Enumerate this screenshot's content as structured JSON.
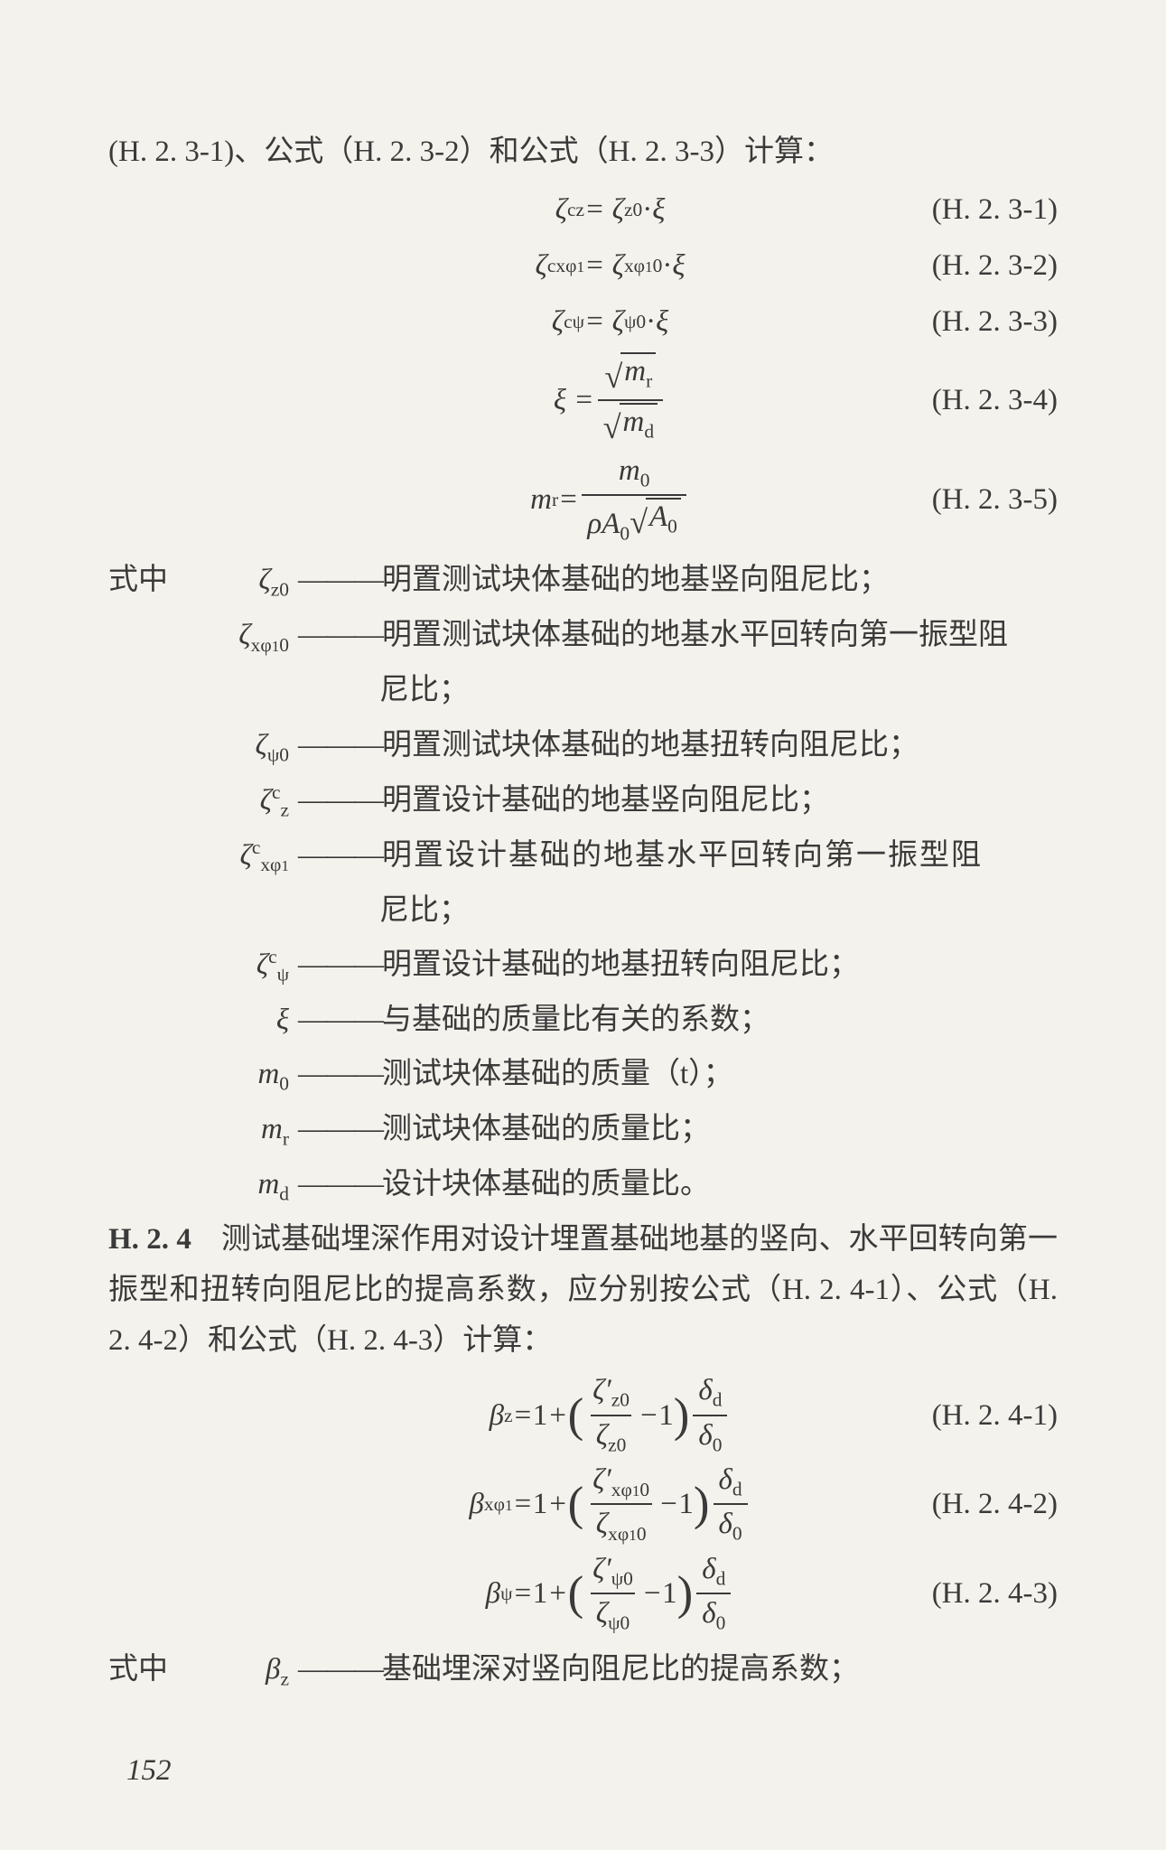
{
  "colors": {
    "text": "#3a3a3a",
    "bg": "#f4f2ec",
    "rule": "#3a3a3a"
  },
  "fonts": {
    "body_family": "SimSun/Songti",
    "body_size_pt": 16,
    "math_family": "Times New Roman"
  },
  "intro_line": "(H. 2. 3-1)、公式（H. 2. 3-2）和公式（H. 2. 3-3）计算：",
  "eqs23": [
    {
      "label": "(H. 2. 3-1)"
    },
    {
      "label": "(H. 2. 3-2)"
    },
    {
      "label": "(H. 2. 3-3)"
    },
    {
      "label": "(H. 2. 3-4)"
    },
    {
      "label": "(H. 2. 3-5)"
    }
  ],
  "defs_lead": "式中",
  "defs23": [
    {
      "text": "明置测试块体基础的地基竖向阻尼比；"
    },
    {
      "text_a": "明置测试块体基础的地基水平回转向第一振型阻",
      "text_b": "尼比；"
    },
    {
      "text": "明置测试块体基础的地基扭转向阻尼比；"
    },
    {
      "text": "明置设计基础的地基竖向阻尼比；"
    },
    {
      "text_a": "明置设计基础的地基水平回转向第一振型阻",
      "text_b": "尼比；"
    },
    {
      "text": "明置设计基础的地基扭转向阻尼比；"
    },
    {
      "text": "与基础的质量比有关的系数；"
    },
    {
      "text": "测试块体基础的质量（t）；"
    },
    {
      "text": "测试块体基础的质量比；"
    },
    {
      "text": "设计块体基础的质量比。"
    }
  ],
  "h24_lead": "H. 2. 4",
  "h24_body": "　测试基础埋深作用对设计埋置基础地基的竖向、水平回转向第一振型和扭转向阻尼比的提高系数，应分别按公式（H. 2. 4-1）、公式（H. 2. 4-2）和公式（H. 2. 4-3）计算：",
  "eqs24": [
    {
      "label": "(H. 2. 4-1)"
    },
    {
      "label": "(H. 2. 4-2)"
    },
    {
      "label": "(H. 2. 4-3)"
    }
  ],
  "defs24": [
    {
      "text": "基础埋深对竖向阻尼比的提高系数；"
    }
  ],
  "page_number": "152",
  "dash": "———"
}
